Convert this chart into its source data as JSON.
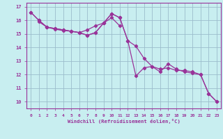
{
  "xlabel": "Windchill (Refroidissement éolien,°C)",
  "background_color": "#c8eef0",
  "grid_color": "#9bbccc",
  "line_color": "#993399",
  "spine_color": "#993399",
  "xlim": [
    -0.5,
    23.5
  ],
  "ylim": [
    9.5,
    17.3
  ],
  "yticks": [
    10,
    11,
    12,
    13,
    14,
    15,
    16,
    17
  ],
  "xticks": [
    0,
    1,
    2,
    3,
    4,
    5,
    6,
    7,
    8,
    9,
    10,
    11,
    12,
    13,
    14,
    15,
    16,
    17,
    18,
    19,
    20,
    21,
    22,
    23
  ],
  "series1_x": [
    0,
    1,
    2,
    3,
    4,
    5,
    6,
    7,
    8,
    9,
    10,
    11,
    12,
    13,
    14,
    15,
    16,
    17,
    18,
    19,
    20,
    21,
    22,
    23
  ],
  "series1_y": [
    16.6,
    16.0,
    15.5,
    15.4,
    15.3,
    15.2,
    15.1,
    14.9,
    15.1,
    15.8,
    16.5,
    16.2,
    14.5,
    14.1,
    13.2,
    12.6,
    12.4,
    12.5,
    12.3,
    12.3,
    12.2,
    12.0,
    10.6,
    10.0
  ],
  "series2_x": [
    0,
    1,
    2,
    3,
    4,
    5,
    6,
    7,
    8,
    9,
    10,
    11,
    12,
    13,
    14,
    15,
    16,
    17,
    18,
    19,
    20,
    21,
    22,
    23
  ],
  "series2_y": [
    16.6,
    16.0,
    15.5,
    15.4,
    15.3,
    15.2,
    15.1,
    14.9,
    15.1,
    15.8,
    16.5,
    16.2,
    14.5,
    11.9,
    12.5,
    12.6,
    12.2,
    12.8,
    12.4,
    12.2,
    12.1,
    12.0,
    10.6,
    10.0
  ],
  "series3_x": [
    1,
    2,
    3,
    4,
    5,
    6,
    7,
    8,
    9,
    10,
    11
  ],
  "series3_y": [
    15.9,
    15.5,
    15.35,
    15.25,
    15.2,
    15.1,
    15.3,
    15.6,
    15.8,
    16.2,
    15.6
  ]
}
